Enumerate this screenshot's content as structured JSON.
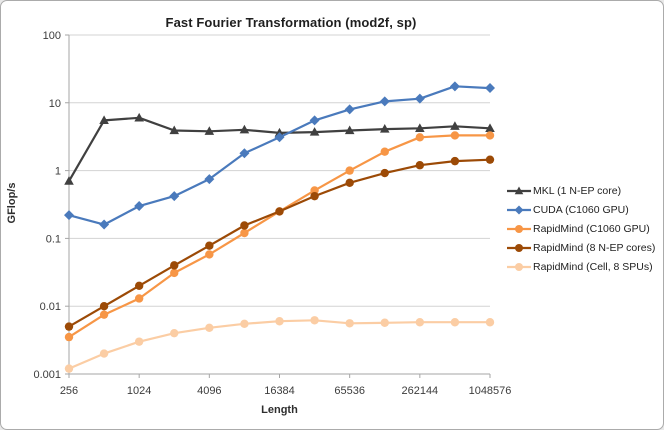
{
  "window": {
    "background": "#ffffff",
    "border_color": "#ababab"
  },
  "styles": {
    "grid_color": "#d3d3d3",
    "axis_color": "#a6a6a6",
    "tick_text_color": "#3c3c3c",
    "title_text_color": "#1f1f1f"
  },
  "chart_data": {
    "type": "line",
    "title": "Fast Fourier Transformation (mod2f, sp)",
    "xlabel": "Length",
    "ylabel": "GFlop/s",
    "x_scale": "log2",
    "y_scale": "log10",
    "xlim": [
      256,
      1048576
    ],
    "ylim": [
      0.001,
      100
    ],
    "grid": "horizontal",
    "legend_position": "right",
    "x": [
      256,
      512,
      1024,
      2048,
      4096,
      8192,
      16384,
      32768,
      65536,
      131072,
      262144,
      524288,
      1048576
    ],
    "x_tick_labels": [
      "256",
      "1024",
      "4096",
      "16384",
      "65536",
      "262144",
      "1048576"
    ],
    "x_tick_values": [
      256,
      1024,
      4096,
      16384,
      65536,
      262144,
      1048576
    ],
    "y_tick_labels": [
      "100",
      "10",
      "1",
      "0.1",
      "0.01",
      "0.001"
    ],
    "y_tick_values": [
      100,
      10,
      1,
      0.1,
      0.01,
      0.001
    ],
    "series": [
      {
        "name": "MKL (1 N-EP core)",
        "color": "#404040",
        "marker": "triangle",
        "values": [
          0.7,
          5.5,
          6.0,
          3.9,
          3.8,
          4.0,
          3.6,
          3.7,
          3.9,
          4.1,
          4.2,
          4.5,
          4.2
        ]
      },
      {
        "name": "CUDA (C1060 GPU)",
        "color": "#4a7abc",
        "marker": "diamond",
        "values": [
          0.22,
          0.16,
          0.3,
          0.42,
          0.75,
          1.8,
          3.1,
          5.5,
          8.0,
          10.5,
          11.5,
          17.5,
          16.5
        ]
      },
      {
        "name": "RapidMind (C1060 GPU)",
        "color": "#f79646",
        "marker": "circle",
        "values": [
          0.0035,
          0.0075,
          0.013,
          0.031,
          0.058,
          0.12,
          0.25,
          0.51,
          1.0,
          1.9,
          3.1,
          3.3,
          3.3
        ]
      },
      {
        "name": "RapidMind (8 N-EP cores)",
        "color": "#9c4a06",
        "marker": "circle",
        "values": [
          0.005,
          0.01,
          0.02,
          0.04,
          0.078,
          0.155,
          0.25,
          0.42,
          0.66,
          0.92,
          1.2,
          1.38,
          1.45
        ]
      },
      {
        "name": "RapidMind (Cell, 8 SPUs)",
        "color": "#fbcda4",
        "marker": "circle",
        "values": [
          0.0012,
          0.002,
          0.003,
          0.004,
          0.0048,
          0.0055,
          0.006,
          0.0062,
          0.0056,
          0.0057,
          0.0058,
          0.0058,
          0.0058
        ]
      }
    ]
  }
}
